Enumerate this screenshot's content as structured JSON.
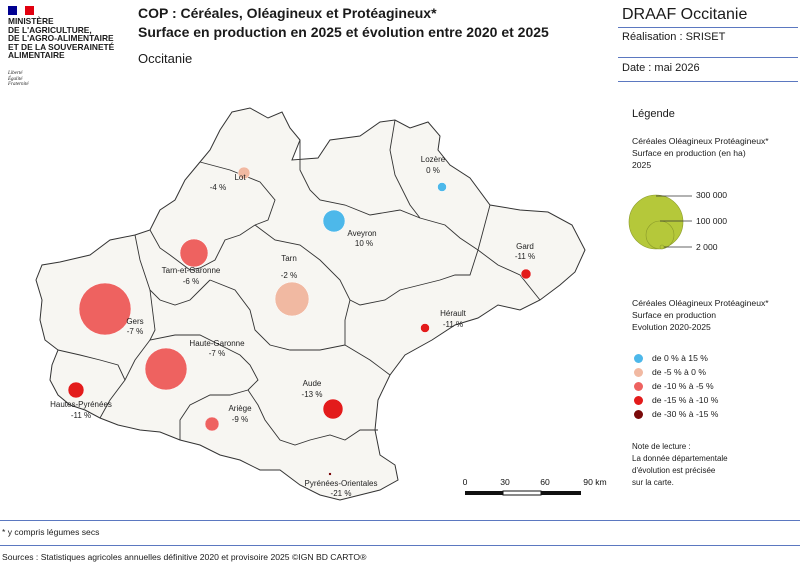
{
  "header": {
    "ministry_name": "MINISTÈRE\nDE L'AGRICULTURE,\nDE L'AGRO-ALIMENTAIRE\nET DE LA SOUVERAINETÉ\nALIMENTAIRE",
    "motto": "Liberté\nÉgalité\nFraternité",
    "title_line1": "COP : Céréales, Oléagineux et Protéagineux*",
    "title_line2": "Surface en production en 2025 et évolution entre 2020 et 2025",
    "region": "Occitanie",
    "org": "DRAAF Occitanie",
    "realisation": "Réalisation : SRISET",
    "date": "Date : mai 2026"
  },
  "legend": {
    "title": "Légende",
    "size_title": "Céréales Oléagineux Protéagineux*\nSurface en production (en ha)\n2025",
    "size_values": [
      "300 000",
      "100 000",
      "2 000"
    ],
    "color_title": "Céréales Oléagineux Protéagineux*\nSurface en production\nEvolution 2020-2025",
    "classes": [
      {
        "label": "de 0 % à 15 %",
        "color": "#4db8ea"
      },
      {
        "label": "de -5 % à 0 %",
        "color": "#f1b9a2"
      },
      {
        "label": "de -10 % à -5 %",
        "color": "#ee6260"
      },
      {
        "label": "de -15 % à -10 %",
        "color": "#e31b1b"
      },
      {
        "label": "de -30 % à -15 %",
        "color": "#7a0a0a"
      }
    ],
    "note": "Note de lecture :\nLa donnée départementale\nd'évolution est précisée\nsur la carte."
  },
  "scale": {
    "ticks": [
      "0",
      "30",
      "60",
      "90 km"
    ]
  },
  "departments": [
    {
      "name": "Lot",
      "change": "-4 %"
    },
    {
      "name": "Lozère",
      "change": "0 %"
    },
    {
      "name": "Aveyron",
      "change": "10 %"
    },
    {
      "name": "Gard",
      "change": "-11 %"
    },
    {
      "name": "Tarn-et-Garonne",
      "change": "-6 %"
    },
    {
      "name": "Tarn",
      "change": "-2 %"
    },
    {
      "name": "Gers",
      "change": "-7 %"
    },
    {
      "name": "Hérault",
      "change": "-11 %"
    },
    {
      "name": "Haute-Garonne",
      "change": "-7 %"
    },
    {
      "name": "Hautes-Pyrénées",
      "change": "-11 %"
    },
    {
      "name": "Ariège",
      "change": "-9 %"
    },
    {
      "name": "Aude",
      "change": "-13 %"
    },
    {
      "name": "Pyrénées-Orientales",
      "change": "-21 %"
    }
  ],
  "footer": {
    "footnote": "* y compris légumes secs",
    "sources": "Sources : Statistiques agricoles annuelles définitive 2020 et provisoire 2025 ©IGN BD CARTO®"
  },
  "colors": {
    "map_fill": "#f7f6f2",
    "map_stroke": "#333333",
    "accent_line": "#5b78c0",
    "size_symbol": "#b5c83a"
  }
}
